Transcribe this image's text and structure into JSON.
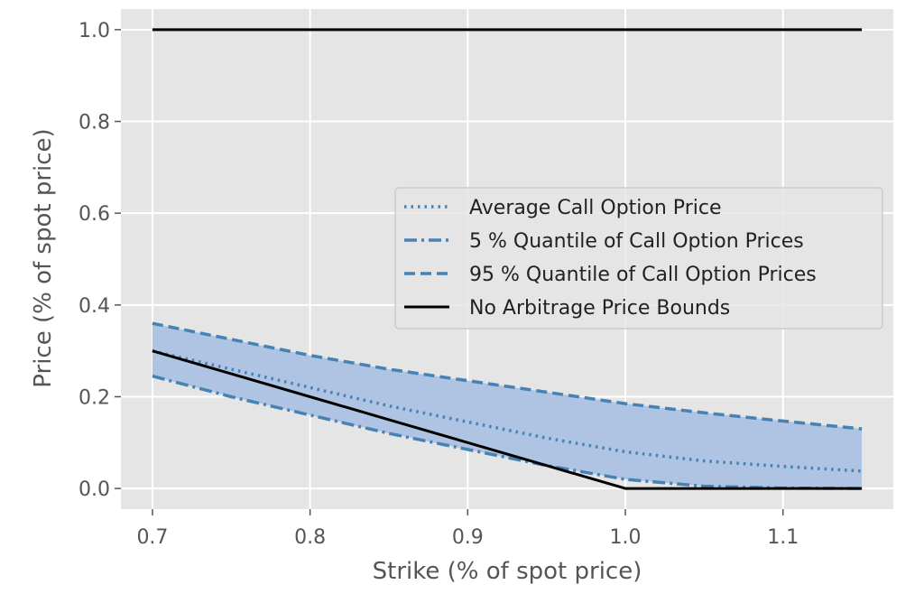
{
  "chart_data": {
    "type": "line",
    "title": "",
    "xlabel": "Strike (% of spot price)",
    "ylabel": "Price (% of spot price)",
    "xlim": [
      0.68,
      1.17
    ],
    "ylim": [
      -0.045,
      1.045
    ],
    "xticks": [
      0.7,
      0.8,
      0.9,
      1.0,
      1.1
    ],
    "xtick_labels": [
      "0.7",
      "0.8",
      "0.9",
      "1.0",
      "1.1"
    ],
    "yticks": [
      0.0,
      0.2,
      0.4,
      0.6,
      0.8,
      1.0
    ],
    "ytick_labels": [
      "0.0",
      "0.2",
      "0.4",
      "0.6",
      "0.8",
      "1.0"
    ],
    "grid": true,
    "legend_position": "center-right",
    "x": [
      0.7,
      0.75,
      0.8,
      0.85,
      0.9,
      0.95,
      1.0,
      1.05,
      1.1,
      1.15
    ],
    "series": [
      {
        "name": "Average Call Option Price",
        "style": "dotted",
        "color": "#4682b4",
        "values": [
          0.3,
          0.26,
          0.22,
          0.18,
          0.145,
          0.11,
          0.08,
          0.06,
          0.048,
          0.038
        ]
      },
      {
        "name": "5 % Quantile of Call Option Prices",
        "style": "dashdot",
        "color": "#4682b4",
        "values": [
          0.245,
          0.2,
          0.16,
          0.12,
          0.085,
          0.05,
          0.02,
          0.005,
          0.001,
          0.0
        ]
      },
      {
        "name": "95 % Quantile of Call Option Prices",
        "style": "dashed",
        "color": "#4682b4",
        "values": [
          0.36,
          0.325,
          0.29,
          0.26,
          0.235,
          0.21,
          0.185,
          0.165,
          0.147,
          0.13
        ]
      },
      {
        "name": "No Arbitrage Price Bounds",
        "style": "solid",
        "color": "#000000",
        "lower_values": [
          0.3,
          0.25,
          0.2,
          0.15,
          0.1,
          0.05,
          0.0,
          0.0,
          0.0,
          0.0
        ],
        "upper_values": [
          1.0,
          1.0,
          1.0,
          1.0,
          1.0,
          1.0,
          1.0,
          1.0,
          1.0,
          1.0
        ]
      }
    ],
    "band": {
      "between": [
        "5 % Quantile of Call Option Prices",
        "95 % Quantile of Call Option Prices"
      ],
      "color": "#aec4e2"
    },
    "background_color": "#e5e5e5",
    "grid_color": "#ffffff"
  }
}
